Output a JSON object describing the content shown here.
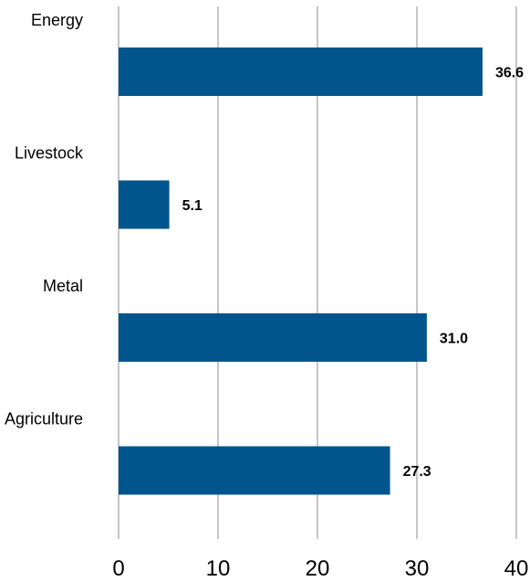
{
  "chart_data": {
    "type": "bar",
    "orientation": "horizontal",
    "categories": [
      "Energy",
      "Livestock",
      "Metal",
      "Agriculture"
    ],
    "values": [
      36.6,
      5.1,
      31.0,
      27.3
    ],
    "value_labels": [
      "36.6",
      "5.1",
      "31.0",
      "27.3"
    ],
    "xlim": [
      0,
      40
    ],
    "xticks": [
      0,
      10,
      20,
      30,
      40
    ],
    "xtick_labels": [
      "0",
      "10",
      "20",
      "30",
      "40"
    ],
    "title": "",
    "xlabel": "",
    "ylabel": "",
    "grid": "vertical",
    "legend": "none",
    "bar_color": "#00558c"
  }
}
